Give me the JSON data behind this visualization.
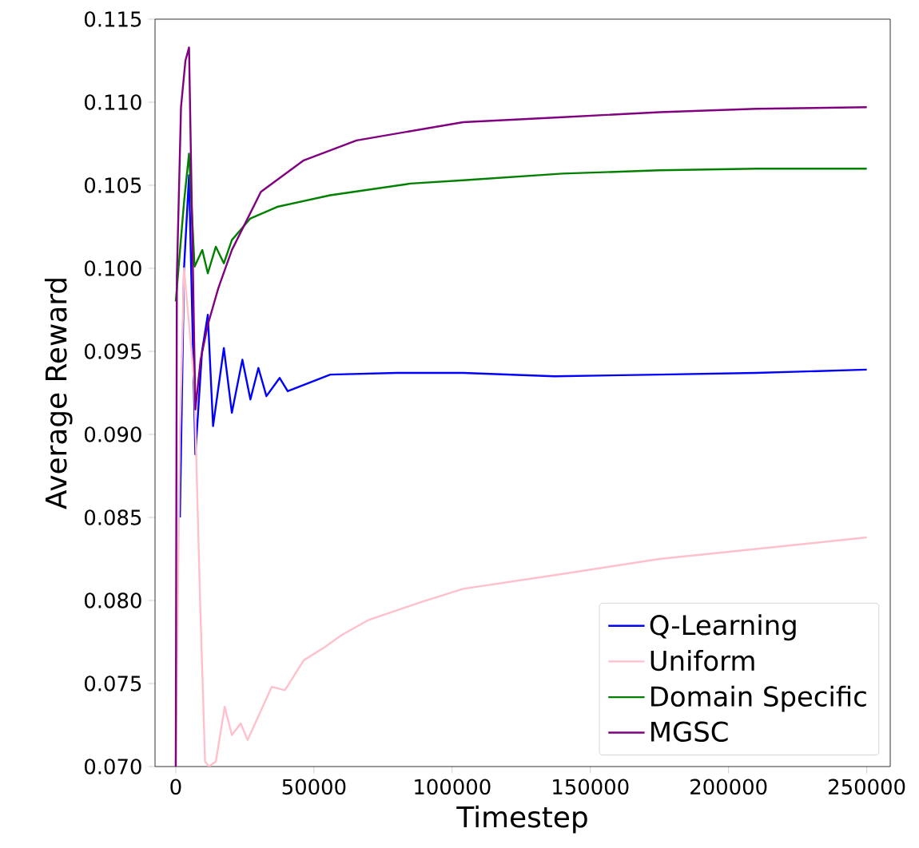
{
  "chart_data": {
    "type": "line",
    "xlabel": "Timestep",
    "ylabel": "Average Reward",
    "xlim": [
      -7500,
      258500
    ],
    "ylim": [
      0.07,
      0.115
    ],
    "xticks": [
      0,
      50000,
      100000,
      150000,
      200000,
      250000
    ],
    "yticks": [
      {
        "value": 0.07,
        "label": "0.070"
      },
      {
        "value": 0.075,
        "label": "0.075"
      },
      {
        "value": 0.08,
        "label": "0.080"
      },
      {
        "value": 0.085,
        "label": "0.085"
      },
      {
        "value": 0.09,
        "label": "0.090"
      },
      {
        "value": 0.095,
        "label": "0.095"
      },
      {
        "value": 0.1,
        "label": "0.100"
      },
      {
        "value": 0.105,
        "label": "0.105"
      },
      {
        "value": 0.11,
        "label": "0.110"
      },
      {
        "value": 0.115,
        "label": "0.115"
      }
    ],
    "grid": false,
    "legend": "bottom right",
    "marker": "none",
    "line_style": "solid",
    "series": [
      {
        "name": "Q-Learning",
        "color": "#0000ff",
        "x": [
          1500,
          3000,
          4800,
          7100,
          9500,
          11600,
          13500,
          17400,
          20300,
          24100,
          27000,
          29900,
          32800,
          37600,
          40500,
          55900,
          80000,
          104000,
          137000,
          175000,
          210000,
          250000
        ],
        "values": [
          0.085,
          0.1,
          0.1056,
          0.0888,
          0.095,
          0.0972,
          0.0905,
          0.0952,
          0.0913,
          0.0945,
          0.0921,
          0.094,
          0.0923,
          0.0934,
          0.0926,
          0.0936,
          0.0937,
          0.0937,
          0.0935,
          0.0936,
          0.0937,
          0.0939
        ]
      },
      {
        "name": "Uniform",
        "color": "#ffc0cb",
        "x": [
          0,
          1500,
          3000,
          6700,
          8800,
          10600,
          12000,
          14500,
          17700,
          20300,
          23500,
          26000,
          34700,
          39500,
          46300,
          54000,
          59800,
          69400,
          88700,
          104000,
          140000,
          175000,
          210000,
          250000
        ],
        "values": [
          0.07,
          0.09,
          0.1,
          0.0931,
          0.08,
          0.0703,
          0.07,
          0.0703,
          0.0736,
          0.0719,
          0.0726,
          0.0716,
          0.0748,
          0.0746,
          0.0764,
          0.0772,
          0.0779,
          0.0788,
          0.0799,
          0.0807,
          0.0816,
          0.0825,
          0.0831,
          0.0838
        ]
      },
      {
        "name": "Domain Specific",
        "color": "#008000",
        "x": [
          0,
          1500,
          3000,
          4800,
          6800,
          9600,
          11600,
          14500,
          17400,
          20300,
          27000,
          36700,
          55900,
          84900,
          104000,
          140000,
          175000,
          210000,
          250000
        ],
        "values": [
          0.098,
          0.101,
          0.104,
          0.1069,
          0.1001,
          0.1011,
          0.0997,
          0.1013,
          0.1003,
          0.1017,
          0.103,
          0.1037,
          0.1044,
          0.1051,
          0.1053,
          0.1057,
          0.1059,
          0.106,
          0.106
        ]
      },
      {
        "name": "MGSC",
        "color": "#800080",
        "x": [
          0,
          400,
          1900,
          3500,
          4800,
          7100,
          9000,
          11600,
          15400,
          20300,
          30800,
          46300,
          65400,
          104000,
          140000,
          175000,
          210000,
          250000
        ],
        "values": [
          0.07,
          0.0995,
          0.1097,
          0.1125,
          0.1133,
          0.0915,
          0.0945,
          0.0966,
          0.0988,
          0.1011,
          0.1046,
          0.1065,
          0.1077,
          0.1088,
          0.1091,
          0.1094,
          0.1096,
          0.1097
        ]
      }
    ]
  }
}
